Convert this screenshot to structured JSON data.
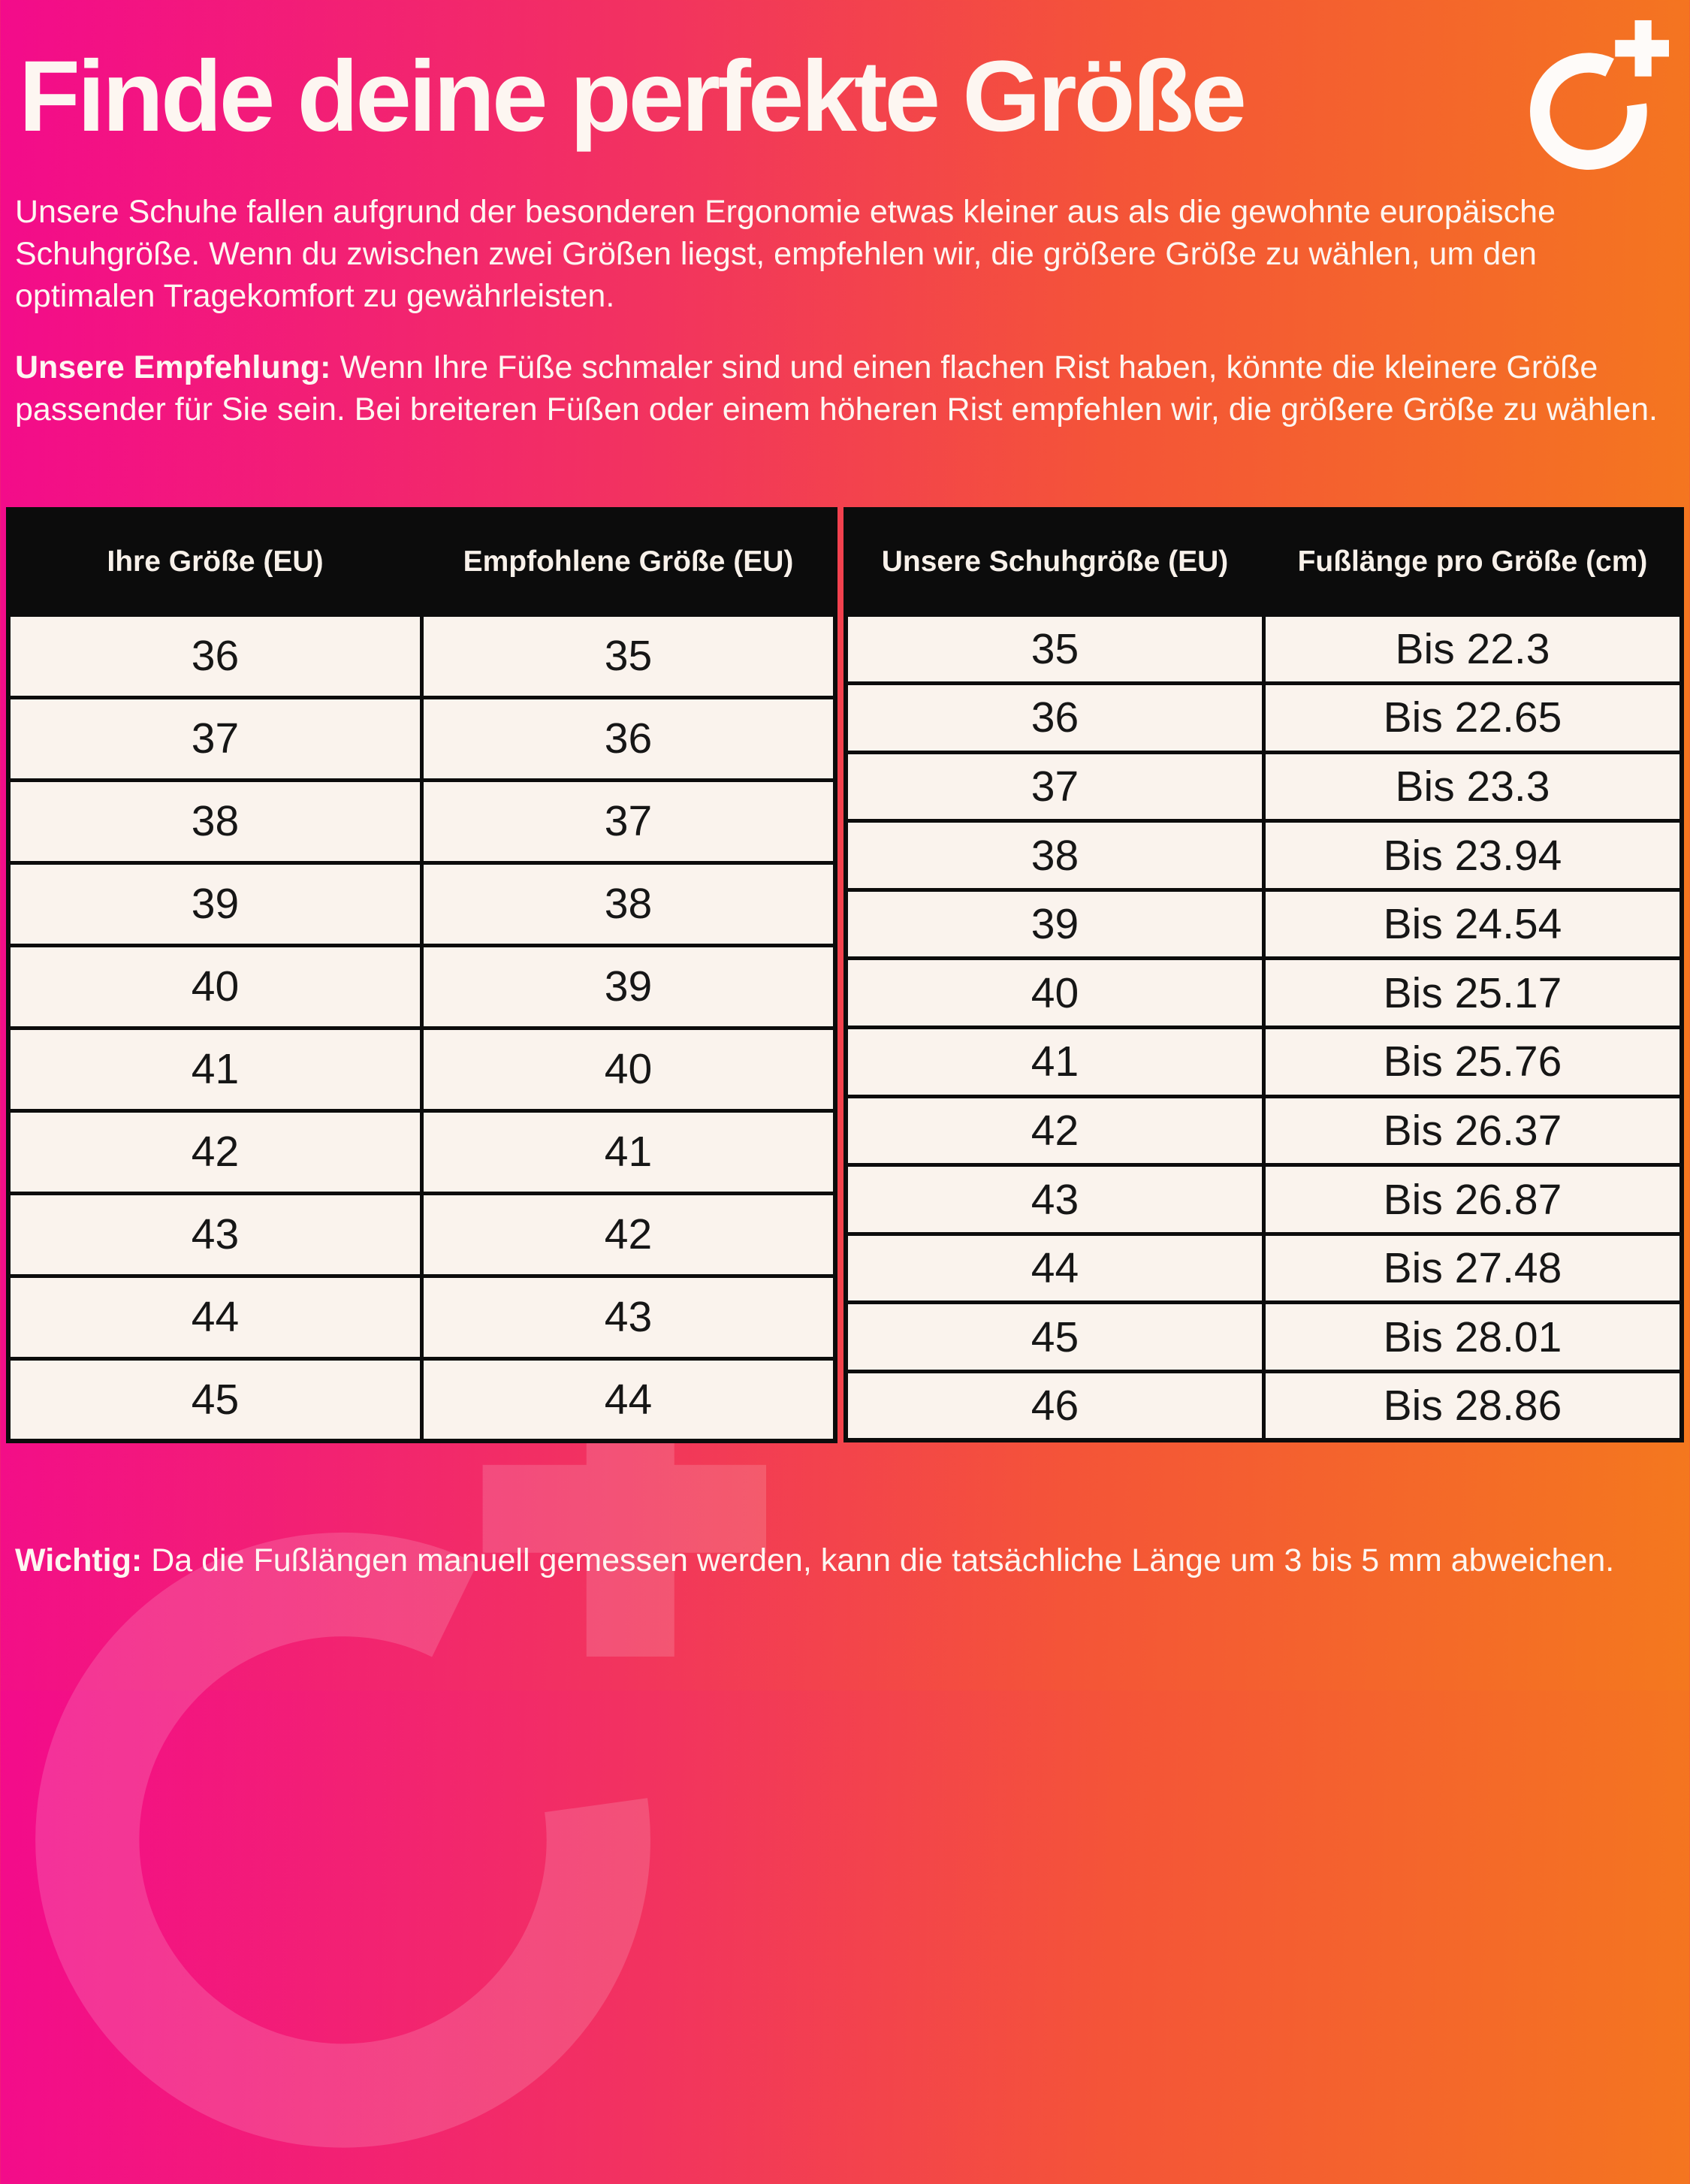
{
  "header": {
    "title": "Finde deine perfekte Größe",
    "logo": "o-plus-brand-logo"
  },
  "intro": {
    "text": "Unsere Schuhe fallen aufgrund der besonderen Ergonomie etwas kleiner aus als die gewohnte europäische Schuhgröße. Wenn du zwischen zwei Größen liegst, empfehlen wir, die größere Größe zu wählen, um den optimalen Tragekomfort zu gewährleisten."
  },
  "recommendation": {
    "label": "Unsere Empfehlung:",
    "text": "Wenn Ihre Füße schmaler sind und einen flachen Rist haben, könnte die kleinere Größe passender für Sie sein. Bei breiteren Füßen oder einem höheren Rist empfehlen wir, die größere Größe zu wählen."
  },
  "size_table": {
    "headers": [
      "Ihre Größe (EU)",
      "Empfohlene Größe (EU)"
    ],
    "rows": [
      [
        "36",
        "35"
      ],
      [
        "37",
        "36"
      ],
      [
        "38",
        "37"
      ],
      [
        "39",
        "38"
      ],
      [
        "40",
        "39"
      ],
      [
        "41",
        "40"
      ],
      [
        "42",
        "41"
      ],
      [
        "43",
        "42"
      ],
      [
        "44",
        "43"
      ],
      [
        "45",
        "44"
      ]
    ]
  },
  "length_table": {
    "headers": [
      "Unsere Schuhgröße (EU)",
      "Fußlänge pro Größe (cm)"
    ],
    "rows": [
      [
        "35",
        "Bis 22.3"
      ],
      [
        "36",
        "Bis 22.65"
      ],
      [
        "37",
        "Bis 23.3"
      ],
      [
        "38",
        "Bis 23.94"
      ],
      [
        "39",
        "Bis 24.54"
      ],
      [
        "40",
        "Bis 25.17"
      ],
      [
        "41",
        "Bis 25.76"
      ],
      [
        "42",
        "Bis 26.37"
      ],
      [
        "43",
        "Bis 26.87"
      ],
      [
        "44",
        "Bis 27.48"
      ],
      [
        "45",
        "Bis 28.01"
      ],
      [
        "46",
        "Bis 28.86"
      ]
    ]
  },
  "note": {
    "label": "Wichtig:",
    "text": "Da die Fußlängen manuell gemessen werden, kann die tatsächliche Länge um 3 bis 5 mm abweichen."
  },
  "colors": {
    "gradient_left": "#F30B8B",
    "gradient_right": "#F4781E",
    "table_header_bg": "#0C0C0C",
    "table_cell_bg": "#FAF3ED",
    "text_light": "#FDF6F1",
    "text_dark": "#161616",
    "logo": "#FFFFFF"
  },
  "chart_data": [
    {
      "type": "table",
      "title": "Größenempfehlung",
      "columns": [
        "Ihre Größe (EU)",
        "Empfohlene Größe (EU)"
      ],
      "rows": [
        [
          36,
          35
        ],
        [
          37,
          36
        ],
        [
          38,
          37
        ],
        [
          39,
          38
        ],
        [
          40,
          39
        ],
        [
          41,
          40
        ],
        [
          42,
          41
        ],
        [
          43,
          42
        ],
        [
          44,
          43
        ],
        [
          45,
          44
        ]
      ]
    },
    {
      "type": "table",
      "title": "Fußlängen",
      "columns": [
        "Unsere Schuhgröße (EU)",
        "Fußlänge pro Größe (cm)"
      ],
      "rows": [
        [
          35,
          "Bis 22.3"
        ],
        [
          36,
          "Bis 22.65"
        ],
        [
          37,
          "Bis 23.3"
        ],
        [
          38,
          "Bis 23.94"
        ],
        [
          39,
          "Bis 24.54"
        ],
        [
          40,
          "Bis 25.17"
        ],
        [
          41,
          "Bis 25.76"
        ],
        [
          42,
          "Bis 26.37"
        ],
        [
          43,
          "Bis 26.87"
        ],
        [
          44,
          "Bis 27.48"
        ],
        [
          45,
          "Bis 28.01"
        ],
        [
          46,
          "Bis 28.86"
        ]
      ]
    }
  ]
}
